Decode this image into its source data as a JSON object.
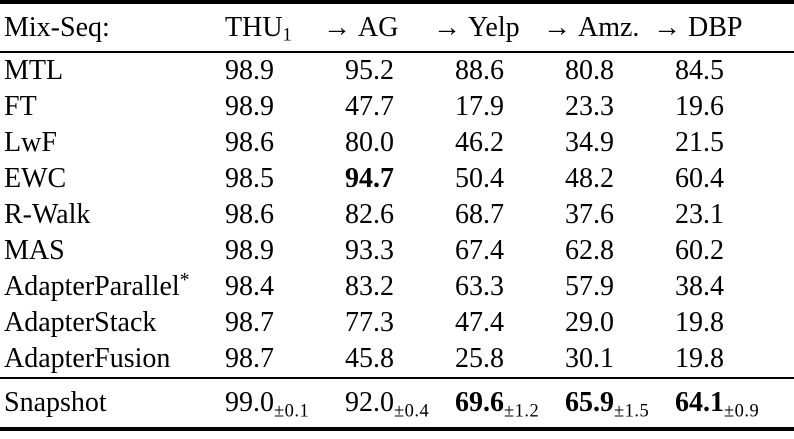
{
  "table": {
    "header": {
      "row_label": "Mix-Seq:",
      "columns": [
        {
          "label": "THU",
          "sub": "1",
          "arrow": ""
        },
        {
          "label": "AG",
          "arrow": "→"
        },
        {
          "label": "Yelp",
          "arrow": "→"
        },
        {
          "label": "Amz.",
          "arrow": "→"
        },
        {
          "label": "DBP",
          "arrow": "→"
        }
      ]
    },
    "body_rows": [
      {
        "method": "MTL",
        "sup": "",
        "values": [
          "98.9",
          "95.2",
          "88.6",
          "80.8",
          "84.5"
        ],
        "bold": [
          false,
          false,
          false,
          false,
          false
        ]
      },
      {
        "method": "FT",
        "sup": "",
        "values": [
          "98.9",
          "47.7",
          "17.9",
          "23.3",
          "19.6"
        ],
        "bold": [
          false,
          false,
          false,
          false,
          false
        ]
      },
      {
        "method": "LwF",
        "sup": "",
        "values": [
          "98.6",
          "80.0",
          "46.2",
          "34.9",
          "21.5"
        ],
        "bold": [
          false,
          false,
          false,
          false,
          false
        ]
      },
      {
        "method": "EWC",
        "sup": "",
        "values": [
          "98.5",
          "94.7",
          "50.4",
          "48.2",
          "60.4"
        ],
        "bold": [
          false,
          true,
          false,
          false,
          false
        ]
      },
      {
        "method": "R-Walk",
        "sup": "",
        "values": [
          "98.6",
          "82.6",
          "68.7",
          "37.6",
          "23.1"
        ],
        "bold": [
          false,
          false,
          false,
          false,
          false
        ]
      },
      {
        "method": "MAS",
        "sup": "",
        "values": [
          "98.9",
          "93.3",
          "67.4",
          "62.8",
          "60.2"
        ],
        "bold": [
          false,
          false,
          false,
          false,
          false
        ]
      },
      {
        "method": "AdapterParallel",
        "sup": "*",
        "values": [
          "98.4",
          "83.2",
          "63.3",
          "57.9",
          "38.4"
        ],
        "bold": [
          false,
          false,
          false,
          false,
          false
        ]
      },
      {
        "method": "AdapterStack",
        "sup": "",
        "values": [
          "98.7",
          "77.3",
          "47.4",
          "29.0",
          "19.8"
        ],
        "bold": [
          false,
          false,
          false,
          false,
          false
        ]
      },
      {
        "method": "AdapterFusion",
        "sup": "",
        "values": [
          "98.7",
          "45.8",
          "25.8",
          "30.1",
          "19.8"
        ],
        "bold": [
          false,
          false,
          false,
          false,
          false
        ]
      }
    ],
    "footer_row": {
      "method": "Snapshot",
      "values": [
        {
          "main": "99.0",
          "sub": "±0.1",
          "bold": false
        },
        {
          "main": "92.0",
          "sub": "±0.4",
          "bold": false
        },
        {
          "main": "69.6",
          "sub": "±1.2",
          "bold": true
        },
        {
          "main": "65.9",
          "sub": "±1.5",
          "bold": true
        },
        {
          "main": "64.1",
          "sub": "±0.9",
          "bold": true
        }
      ]
    }
  }
}
